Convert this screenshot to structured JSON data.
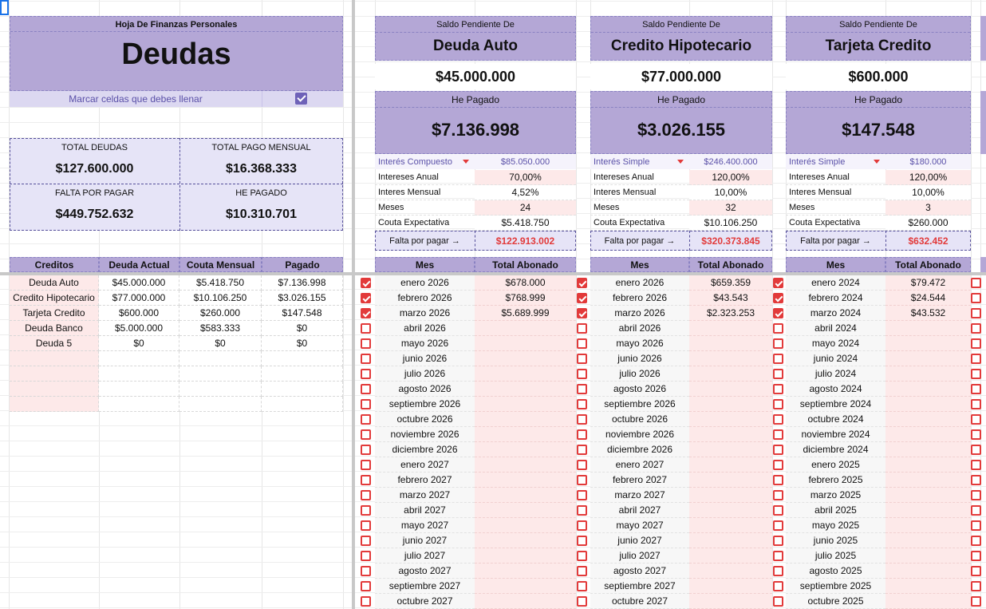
{
  "colors": {
    "purple": "#b4a7d6",
    "lavender": "#e6e4f7",
    "pink": "#fde9e9",
    "red": "#e23a3a"
  },
  "left": {
    "sheet_title": "Hoja De Finanzas Personales",
    "heading": "Deudas",
    "mark_note": "Marcar celdas que debes llenar",
    "summary": {
      "total_deudas_label": "TOTAL DEUDAS",
      "total_deudas": "$127.600.000",
      "total_pago_label": "TOTAL PAGO MENSUAL",
      "total_pago": "$16.368.333",
      "falta_label": "FALTA POR PAGAR",
      "falta": "$449.752.632",
      "pagado_label": "HE PAGADO",
      "pagado": "$10.310.701"
    },
    "table": {
      "headers": [
        "Creditos",
        "Deuda Actual",
        "Couta Mensual",
        "Pagado"
      ],
      "rows": [
        [
          "Deuda Auto",
          "$45.000.000",
          "$5.418.750",
          "$7.136.998"
        ],
        [
          "Credito Hipotecario",
          "$77.000.000",
          "$10.106.250",
          "$3.026.155"
        ],
        [
          "Tarjeta Credito",
          "$600.000",
          "$260.000",
          "$147.548"
        ],
        [
          "Deuda Banco",
          "$5.000.000",
          "$583.333",
          "$0"
        ],
        [
          "Deuda 5",
          "$0",
          "$0",
          "$0"
        ]
      ]
    }
  },
  "panels": [
    {
      "saldo_label": "Saldo Pendiente De",
      "name": "Deuda Auto",
      "saldo": "$45.000.000",
      "he_pagado_label": "He Pagado",
      "he_pagado": "$7.136.998",
      "interest_type": "Interés Compuesto",
      "interest_total": "$85.050.000",
      "rows": [
        [
          "Intereses Anual",
          "70,00%"
        ],
        [
          "Interes Mensual",
          "4,52%"
        ],
        [
          "Meses",
          "24"
        ],
        [
          "Couta Expectativa",
          "$5.418.750"
        ]
      ],
      "falta_label": "Falta por pagar →",
      "falta": "$122.913.002",
      "col_mes": "Mes",
      "col_total": "Total Abonado",
      "months": [
        "enero 2026",
        "febrero 2026",
        "marzo 2026",
        "abril 2026",
        "mayo 2026",
        "junio 2026",
        "julio 2026",
        "agosto 2026",
        "septiembre 2026",
        "octubre 2026",
        "noviembre 2026",
        "diciembre 2026",
        "enero 2027",
        "febrero 2027",
        "marzo 2027",
        "abril 2027",
        "mayo 2027",
        "junio 2027",
        "julio 2027",
        "agosto 2027",
        "septiembre 2027",
        "octubre 2027"
      ],
      "abonos": [
        "$678.000",
        "$768.999",
        "$5.689.999"
      ]
    },
    {
      "saldo_label": "Saldo Pendiente De",
      "name": "Credito Hipotecario",
      "saldo": "$77.000.000",
      "he_pagado_label": "He Pagado",
      "he_pagado": "$3.026.155",
      "interest_type": "Interés Simple",
      "interest_total": "$246.400.000",
      "rows": [
        [
          "Intereses Anual",
          "120,00%"
        ],
        [
          "Interes Mensual",
          "10,00%"
        ],
        [
          "Meses",
          "32"
        ],
        [
          "Couta Expectativa",
          "$10.106.250"
        ]
      ],
      "falta_label": "Falta por pagar →",
      "falta": "$320.373.845",
      "col_mes": "Mes",
      "col_total": "Total Abonado",
      "months": [
        "enero 2026",
        "febrero 2026",
        "marzo 2026",
        "abril 2026",
        "mayo 2026",
        "junio 2026",
        "julio 2026",
        "agosto 2026",
        "septiembre 2026",
        "octubre 2026",
        "noviembre 2026",
        "diciembre 2026",
        "enero 2027",
        "febrero 2027",
        "marzo 2027",
        "abril 2027",
        "mayo 2027",
        "junio 2027",
        "julio 2027",
        "agosto 2027",
        "septiembre 2027",
        "octubre 2027"
      ],
      "abonos": [
        "$659.359",
        "$43.543",
        "$2.323.253"
      ]
    },
    {
      "saldo_label": "Saldo Pendiente De",
      "name": "Tarjeta Credito",
      "saldo": "$600.000",
      "he_pagado_label": "He Pagado",
      "he_pagado": "$147.548",
      "interest_type": "Interés Simple",
      "interest_total": "$180.000",
      "rows": [
        [
          "Intereses Anual",
          "120,00%"
        ],
        [
          "Interes Mensual",
          "10,00%"
        ],
        [
          "Meses",
          "3"
        ],
        [
          "Couta Expectativa",
          "$260.000"
        ]
      ],
      "falta_label": "Falta por pagar →",
      "falta": "$632.452",
      "col_mes": "Mes",
      "col_total": "Total Abonado",
      "months": [
        "enero 2024",
        "febrero 2024",
        "marzo 2024",
        "abril 2024",
        "mayo 2024",
        "junio 2024",
        "julio 2024",
        "agosto 2024",
        "septiembre 2024",
        "octubre 2024",
        "noviembre 2024",
        "diciembre 2024",
        "enero 2025",
        "febrero 2025",
        "marzo 2025",
        "abril 2025",
        "mayo 2025",
        "junio 2025",
        "julio 2025",
        "agosto 2025",
        "septiembre 2025",
        "octubre 2025"
      ],
      "abonos": [
        "$79.472",
        "$24.544",
        "$43.532"
      ]
    }
  ]
}
